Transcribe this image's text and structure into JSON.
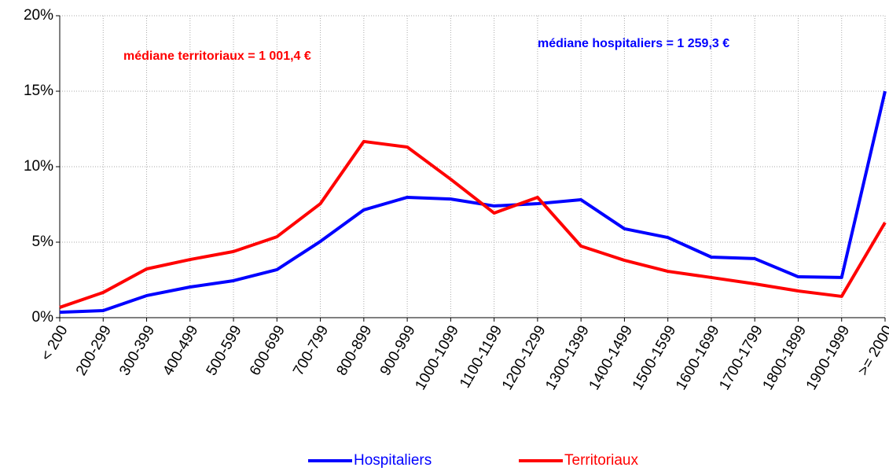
{
  "chart_data": {
    "type": "line",
    "categories": [
      "< 200",
      "200-299",
      "300-399",
      "400-499",
      "500-599",
      "600-699",
      "700-799",
      "800-899",
      "900-999",
      "1000-1099",
      "1100-1199",
      "1200-1299",
      "1300-1399",
      "1400-1499",
      "1500-1599",
      "1600-1699",
      "1700-1799",
      "1800-1899",
      "1900-1999",
      ">= 2000"
    ],
    "series": [
      {
        "name": "Hospitaliers",
        "color": "#0000ff",
        "values": [
          0.36,
          0.47,
          1.46,
          2.03,
          2.45,
          3.18,
          5.05,
          7.14,
          7.97,
          7.86,
          7.4,
          7.55,
          7.81,
          5.89,
          5.31,
          4.01,
          3.91,
          2.71,
          2.66,
          15.0
        ]
      },
      {
        "name": "Territoriaux",
        "color": "#ff0000",
        "values": [
          0.68,
          1.67,
          3.23,
          3.85,
          4.38,
          5.36,
          7.55,
          11.67,
          11.3,
          9.17,
          6.93,
          7.97,
          4.74,
          3.8,
          3.07,
          2.66,
          2.24,
          1.77,
          1.41,
          6.3
        ]
      }
    ],
    "annotations": [
      {
        "text": "médiane territoriaux = 1 001,4  €",
        "color": "#ff0000"
      },
      {
        "text": "médiane hospitaliers = 1 259,3  €",
        "color": "#0000ff"
      }
    ],
    "ylim": [
      0,
      20
    ],
    "yticks": [
      {
        "value": 0,
        "label": "0%"
      },
      {
        "value": 5,
        "label": "5%"
      },
      {
        "value": 10,
        "label": "10%"
      },
      {
        "value": 15,
        "label": "15%"
      },
      {
        "value": 20,
        "label": "20%"
      }
    ],
    "grid": true,
    "legend": "bottom"
  }
}
